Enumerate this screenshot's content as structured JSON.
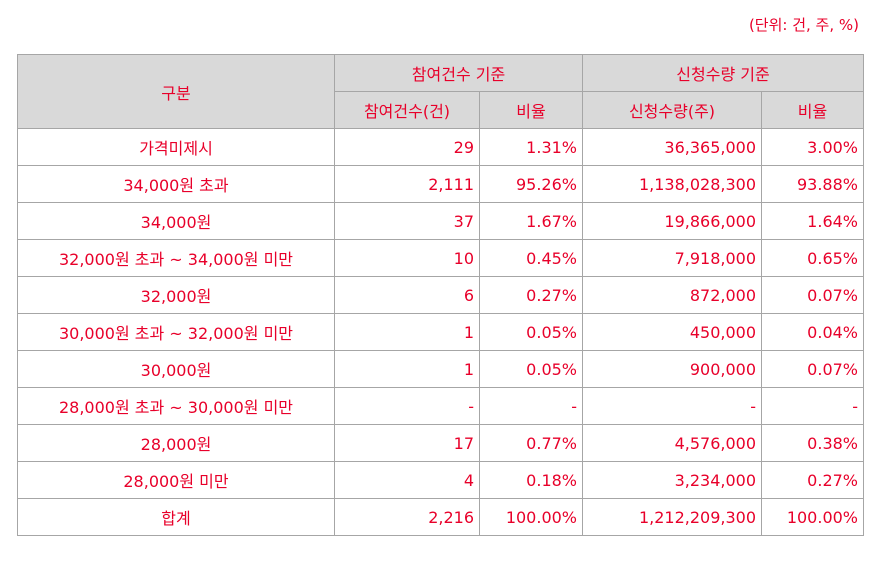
{
  "unit_note": "(단위: 건, 주, %)",
  "table": {
    "header": {
      "category": "구분",
      "group1": "참여건수 기준",
      "group2": "신청수량 기준",
      "col_count": "참여건수(건)",
      "col_count_ratio": "비율",
      "col_qty": "신청수량(주)",
      "col_qty_ratio": "비율"
    },
    "rows": [
      {
        "label": "가격미제시",
        "count": "29",
        "count_ratio": "1.31%",
        "qty": "36,365,000",
        "qty_ratio": "3.00%"
      },
      {
        "label": "34,000원 초과",
        "count": "2,111",
        "count_ratio": "95.26%",
        "qty": "1,138,028,300",
        "qty_ratio": "93.88%"
      },
      {
        "label": "34,000원",
        "count": "37",
        "count_ratio": "1.67%",
        "qty": "19,866,000",
        "qty_ratio": "1.64%"
      },
      {
        "label": "32,000원 초과 ~ 34,000원 미만",
        "count": "10",
        "count_ratio": "0.45%",
        "qty": "7,918,000",
        "qty_ratio": "0.65%"
      },
      {
        "label": "32,000원",
        "count": "6",
        "count_ratio": "0.27%",
        "qty": "872,000",
        "qty_ratio": "0.07%"
      },
      {
        "label": "30,000원 초과 ~ 32,000원 미만",
        "count": "1",
        "count_ratio": "0.05%",
        "qty": "450,000",
        "qty_ratio": "0.04%"
      },
      {
        "label": "30,000원",
        "count": "1",
        "count_ratio": "0.05%",
        "qty": "900,000",
        "qty_ratio": "0.07%"
      },
      {
        "label": "28,000원 초과 ~ 30,000원 미만",
        "count": "-",
        "count_ratio": "-",
        "qty": "-",
        "qty_ratio": "-"
      },
      {
        "label": "28,000원",
        "count": "17",
        "count_ratio": "0.77%",
        "qty": "4,576,000",
        "qty_ratio": "0.38%"
      },
      {
        "label": "28,000원 미만",
        "count": "4",
        "count_ratio": "0.18%",
        "qty": "3,234,000",
        "qty_ratio": "0.27%"
      },
      {
        "label": "합계",
        "count": "2,216",
        "count_ratio": "100.00%",
        "qty": "1,212,209,300",
        "qty_ratio": "100.00%"
      }
    ]
  }
}
